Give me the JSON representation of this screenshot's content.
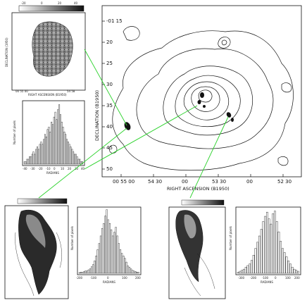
{
  "main_map": {
    "xlabel": "RIGHT ASCENSION (B1950)",
    "ylabel": "DECLINATION (B1950)",
    "x_ticks": [
      "00 55 00",
      "54 30",
      "00",
      "53 30",
      "00",
      "52 30"
    ],
    "y_ticks": [
      "-01 15",
      "20",
      "25",
      "30",
      "35",
      "40",
      "45",
      "50"
    ]
  },
  "top_left_panel": {
    "colorbar_ticks": [
      "-20",
      "0",
      "20",
      "40"
    ],
    "ylabel": "DECLINATION (1950)",
    "xlabel": "RIGHT ASCENSION (B1950)",
    "x_ticks": [
      "00 55 00",
      "54 58"
    ],
    "hist_xlabel": "RADIANS",
    "hist_ylabel": "Number of pixels",
    "hist_x_ticks": [
      "-40",
      "-30",
      "-20",
      "-10",
      "0",
      "10",
      "20",
      "30",
      "40"
    ],
    "hist_y_ticks": [
      "20",
      "15",
      "10",
      "5",
      "0"
    ]
  },
  "bottom_left_panel": {
    "hist_xlabel": "RADIANS",
    "hist_ylabel": "Number of pixels",
    "hist_x_ticks": [
      "-200",
      "-150",
      "-100",
      "-50",
      "0",
      "50",
      "100",
      "150",
      "200"
    ],
    "hist_y_ticks": [
      "250",
      "200",
      "150",
      "100",
      "50",
      "0"
    ]
  },
  "bottom_right_panel": {
    "hist_xlabel": "RADIANS",
    "hist_ylabel": "Number of pixels",
    "hist_x_ticks": [
      "-300",
      "-200",
      "-100",
      "0",
      "100",
      "200"
    ],
    "hist_y_ticks": [
      "100",
      "50",
      "0"
    ]
  },
  "leader_line_color": "#2bd22b",
  "chart_data": [
    {
      "type": "bar",
      "title": "",
      "xlabel": "RADIANS",
      "ylabel": "Number of pixels",
      "values": [
        1,
        1,
        2,
        2,
        3,
        3,
        4,
        5,
        4,
        6,
        7,
        6,
        8,
        9,
        8,
        10,
        12,
        11,
        14,
        15,
        13,
        17,
        16,
        19,
        21,
        18,
        22,
        24,
        20,
        17,
        15,
        13,
        12,
        10,
        9,
        8,
        7,
        6,
        5,
        4,
        4,
        3,
        2,
        2,
        1,
        1
      ],
      "xlim": [
        -40,
        40
      ],
      "ylim": [
        0,
        25
      ]
    },
    {
      "type": "bar",
      "title": "",
      "xlabel": "RADIANS",
      "ylabel": "Number of pixels",
      "values": [
        3,
        5,
        4,
        7,
        10,
        9,
        14,
        18,
        26,
        35,
        50,
        70,
        95,
        120,
        150,
        180,
        200,
        230,
        255,
        215,
        200,
        175,
        150,
        165,
        185,
        150,
        120,
        95,
        80,
        70,
        60,
        45,
        30,
        25,
        18,
        12,
        9,
        7,
        5,
        4
      ],
      "xlim": [
        -200,
        200
      ],
      "ylim": [
        0,
        260
      ]
    },
    {
      "type": "bar",
      "title": "",
      "xlabel": "RADIANS",
      "ylabel": "Number of pixels",
      "values": [
        2,
        4,
        6,
        8,
        12,
        15,
        18,
        25,
        35,
        48,
        60,
        72,
        85,
        100,
        110,
        118,
        105,
        95,
        115,
        120,
        100,
        80,
        62,
        48,
        40,
        32,
        24,
        18,
        12,
        8,
        6,
        4
      ],
      "xlim": [
        -300,
        250
      ],
      "ylim": [
        0,
        125
      ]
    }
  ]
}
